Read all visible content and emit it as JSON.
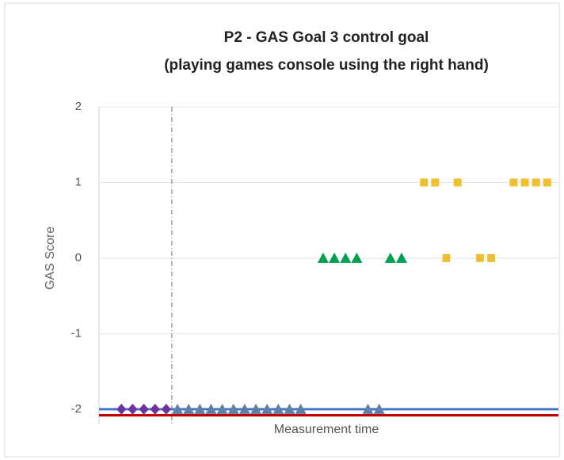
{
  "chart_data": {
    "type": "scatter",
    "title": [
      "P2 - GAS Goal 3 control goal",
      "(playing games console using the right hand)"
    ],
    "x_label": "Measurement time",
    "y_label": "GAS Score",
    "xlim": [
      -1,
      40
    ],
    "ylim": [
      -2.2,
      2
    ],
    "yticks": [
      -2,
      -1,
      0,
      1,
      2
    ],
    "grid": true,
    "phase_line_x": 5.5,
    "reference_lines": [
      {
        "value": -2,
        "color": "#4472c4"
      },
      {
        "value": -2.08,
        "color": "#c00000"
      }
    ],
    "series": [
      {
        "marker": "diamond",
        "color": "#7030a0",
        "x": [
          1,
          2,
          3,
          4,
          5
        ],
        "values": [
          -2,
          -2,
          -2,
          -2,
          -2
        ]
      },
      {
        "marker": "triangle",
        "color": "#5b7fa6",
        "x": [
          6,
          7,
          8,
          9,
          10,
          11,
          12,
          13,
          14,
          15,
          16,
          17,
          23,
          24
        ],
        "values": [
          -2,
          -2,
          -2,
          -2,
          -2,
          -2,
          -2,
          -2,
          -2,
          -2,
          -2,
          -2,
          -2,
          -2
        ]
      },
      {
        "marker": "triangle",
        "color": "#00a050",
        "x": [
          19,
          20,
          21,
          22,
          25,
          26
        ],
        "values": [
          0,
          0,
          0,
          0,
          0,
          0
        ]
      },
      {
        "marker": "square",
        "color": "#f0c030",
        "x": [
          28,
          29,
          30,
          31,
          33,
          34,
          36,
          37,
          38,
          39
        ],
        "values": [
          1,
          1,
          0,
          1,
          0,
          0,
          1,
          1,
          1,
          1
        ]
      }
    ]
  }
}
